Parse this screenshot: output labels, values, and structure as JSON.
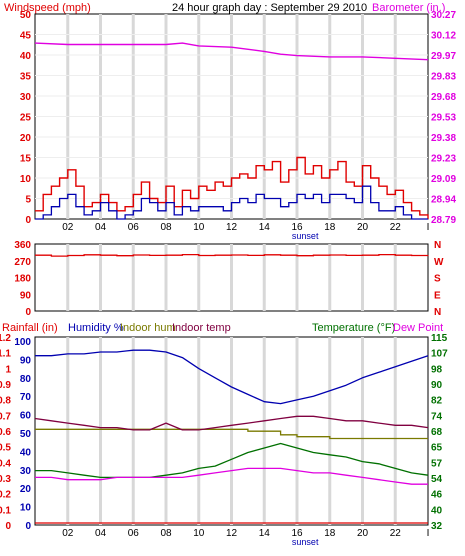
{
  "colors": {
    "red": "#e00000",
    "blue": "#0000b0",
    "magenta": "#e000e0",
    "olive": "#7a7a00",
    "maroon": "#800040",
    "green": "#007000",
    "grid": "#d8d8d8",
    "black": "#000000"
  },
  "chart_data": [
    {
      "type": "line",
      "title": "24 hour graph day : September 29 2010",
      "left_label": "Windspeed (mph)",
      "right_label": "Barometer (in.)",
      "x_ticks": [
        "02",
        "04",
        "06",
        "08",
        "10",
        "12",
        "14",
        "16",
        "18",
        "20",
        "22"
      ],
      "sunset_label": "sunset",
      "y_left_ticks": [
        "0",
        "5",
        "10",
        "15",
        "20",
        "25",
        "30",
        "35",
        "40",
        "45",
        "50"
      ],
      "y_left_range": [
        0,
        50
      ],
      "y_right_ticks": [
        "28.79",
        "28.94",
        "29.09",
        "29.23",
        "29.38",
        "29.53",
        "29.68",
        "29.83",
        "29.97",
        "30.12",
        "30.27"
      ],
      "y_right_range": [
        28.79,
        30.27
      ],
      "series": [
        {
          "role": "gust",
          "x": [
            0,
            0.5,
            1,
            1.5,
            2,
            2.5,
            3,
            3.5,
            4,
            4.5,
            5,
            5.5,
            6,
            6.5,
            7,
            7.5,
            8,
            8.5,
            9,
            9.5,
            10,
            10.5,
            11,
            11.5,
            12,
            12.5,
            13,
            13.5,
            14,
            14.5,
            15,
            15.5,
            16,
            16.5,
            17,
            17.5,
            18,
            18.5,
            19,
            19.5,
            20,
            20.5,
            21,
            21.5,
            22,
            22.5,
            23,
            23.5,
            24
          ],
          "values": [
            2,
            6,
            8,
            10,
            12,
            8,
            3,
            4,
            6,
            4,
            2,
            3,
            6,
            9,
            5,
            4,
            8,
            3,
            7,
            5,
            8,
            7,
            9,
            8,
            10,
            11,
            10,
            13,
            12,
            14,
            9,
            12,
            15,
            11,
            13,
            10,
            12,
            14,
            9,
            8,
            13,
            10,
            8,
            6,
            7,
            4,
            2,
            1,
            0
          ]
        },
        {
          "role": "speed",
          "x": [
            0,
            0.5,
            1,
            1.5,
            2,
            2.5,
            3,
            3.5,
            4,
            4.5,
            5,
            5.5,
            6,
            6.5,
            7,
            7.5,
            8,
            8.5,
            9,
            9.5,
            10,
            10.5,
            11,
            11.5,
            12,
            12.5,
            13,
            13.5,
            14,
            14.5,
            15,
            15.5,
            16,
            16.5,
            17,
            17.5,
            18,
            18.5,
            19,
            19.5,
            20,
            20.5,
            21,
            21.5,
            22,
            22.5,
            23,
            23.5,
            24
          ],
          "values": [
            0,
            1,
            3,
            5,
            6,
            3,
            1,
            2,
            4,
            2,
            0,
            1,
            2,
            5,
            4,
            2,
            4,
            1,
            3,
            2,
            3,
            3,
            3,
            2,
            4,
            5,
            4,
            6,
            5,
            5,
            3,
            4,
            6,
            5,
            6,
            4,
            6,
            6,
            5,
            4,
            8,
            4,
            2,
            2,
            3,
            1,
            0,
            0,
            0
          ]
        },
        {
          "role": "barometer",
          "x": [
            0,
            2,
            4,
            6,
            8,
            9,
            10,
            12,
            14,
            15,
            16,
            18,
            20,
            22,
            24
          ],
          "values": [
            30.06,
            30.05,
            30.05,
            30.05,
            30.05,
            30.06,
            30.04,
            30.03,
            30.0,
            29.98,
            29.97,
            29.96,
            29.96,
            29.95,
            29.94
          ]
        }
      ]
    },
    {
      "type": "line",
      "y_left_ticks": [
        "0",
        "90",
        "180",
        "270",
        "360"
      ],
      "y_left_range": [
        0,
        360
      ],
      "y_right_ticks": [
        "N",
        "W",
        "S",
        "E",
        "N"
      ],
      "series": [
        {
          "role": "direction",
          "x": [
            0,
            1,
            2,
            3,
            4,
            5,
            6,
            7,
            8,
            9,
            10,
            11,
            12,
            13,
            14,
            15,
            16,
            17,
            18,
            19,
            20,
            21,
            22,
            23,
            24
          ],
          "values": [
            300,
            295,
            298,
            302,
            300,
            297,
            301,
            299,
            300,
            303,
            298,
            300,
            301,
            299,
            302,
            300,
            297,
            300,
            301,
            299,
            300,
            303,
            300,
            298,
            300
          ]
        }
      ]
    },
    {
      "type": "line",
      "label_rainfall": "Rainfall (in)",
      "label_humidity": "Humidity %",
      "label_indoor_hum": "Indoor hum",
      "label_indoor_temp": "Indoor temp",
      "label_temperature": "Temperature (°F)",
      "label_dewpoint": "Dew Point",
      "x_ticks": [
        "02",
        "04",
        "06",
        "08",
        "10",
        "12",
        "14",
        "16",
        "18",
        "20",
        "22"
      ],
      "sunset_label": "sunset",
      "y_rain_ticks": [
        "0",
        "0.1",
        "0.2",
        "0.3",
        "0.4",
        "0.5",
        "0.6",
        "0.7",
        "0.8",
        "0.9",
        "1",
        "1.1",
        "1.2"
      ],
      "y_hum_ticks": [
        "0",
        "10",
        "20",
        "30",
        "40",
        "50",
        "60",
        "70",
        "80",
        "90",
        "100"
      ],
      "y_temp_ticks": [
        "32",
        "40",
        "46",
        "54",
        "57",
        "65",
        "68",
        "74",
        "82",
        "90",
        "98",
        "107",
        "115"
      ],
      "y_temp_range": [
        32,
        115
      ],
      "series": [
        {
          "role": "humidity",
          "x": [
            0,
            1,
            2,
            3,
            4,
            5,
            6,
            7,
            8,
            9,
            10,
            11,
            12,
            13,
            14,
            15,
            16,
            17,
            18,
            19,
            20,
            21,
            22,
            23,
            24
          ],
          "values": [
            92,
            92,
            93,
            93,
            94,
            94,
            95,
            95,
            94,
            91,
            85,
            80,
            75,
            71,
            67,
            66,
            68,
            70,
            73,
            76,
            80,
            83,
            86,
            89,
            92
          ]
        },
        {
          "role": "indoor_hum",
          "x": [
            0,
            2,
            4,
            6,
            8,
            10,
            12,
            13,
            14,
            15,
            16,
            18,
            20,
            22,
            23,
            24
          ],
          "values": [
            52,
            52,
            52,
            52,
            52,
            52,
            52,
            51,
            51,
            49,
            48,
            47,
            47,
            47,
            47,
            47
          ]
        },
        {
          "role": "indoor_temp",
          "x": [
            0,
            1,
            2,
            3,
            4,
            5,
            6,
            7,
            8,
            9,
            10,
            11,
            12,
            13,
            14,
            15,
            16,
            17,
            18,
            19,
            20,
            21,
            22,
            23,
            24
          ],
          "values": [
            79,
            78,
            77,
            76,
            75,
            75,
            74,
            74,
            77,
            74,
            74,
            75,
            76,
            77,
            78,
            79,
            80,
            80,
            79,
            78,
            78,
            77,
            76,
            76,
            75
          ]
        },
        {
          "role": "temperature",
          "x": [
            0,
            1,
            2,
            3,
            4,
            5,
            6,
            7,
            8,
            9,
            10,
            11,
            12,
            13,
            14,
            15,
            16,
            17,
            18,
            19,
            20,
            21,
            22,
            23,
            24
          ],
          "values": [
            56,
            56,
            55,
            54,
            53,
            53,
            53,
            53,
            54,
            55,
            57,
            58,
            61,
            64,
            66,
            68,
            66,
            64,
            63,
            62,
            60,
            59,
            57,
            55,
            54
          ]
        },
        {
          "role": "dewpoint",
          "x": [
            0,
            1,
            2,
            3,
            4,
            5,
            6,
            7,
            8,
            9,
            10,
            11,
            12,
            13,
            14,
            15,
            16,
            17,
            18,
            19,
            20,
            21,
            22,
            23,
            24
          ],
          "values": [
            53,
            53,
            52,
            52,
            52,
            53,
            53,
            53,
            53,
            53,
            54,
            55,
            56,
            57,
            57,
            57,
            56,
            55,
            55,
            54,
            53,
            52,
            51,
            50,
            50
          ]
        },
        {
          "role": "rainfall",
          "x": [
            0,
            24
          ],
          "values": [
            0,
            0
          ]
        }
      ]
    }
  ]
}
